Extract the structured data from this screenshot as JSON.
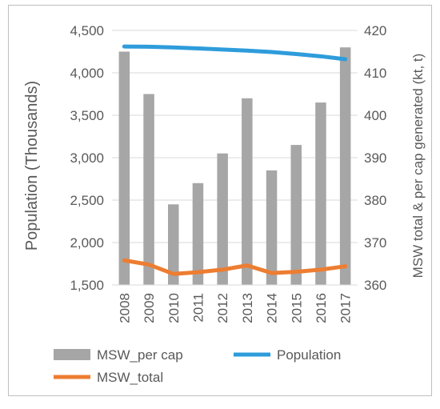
{
  "chart_data": {
    "type": "bar",
    "categories": [
      "2008",
      "2009",
      "2010",
      "2011",
      "2012",
      "2013",
      "2014",
      "2015",
      "2016",
      "2017"
    ],
    "ylabel_left": "Population (Thousands)",
    "ylabel_right": "MSW total & per cap generated (kt, t)",
    "ylim_left": [
      1500,
      4500
    ],
    "ylim_right": [
      360,
      420
    ],
    "yticks_left": [
      "1,500",
      "2,000",
      "2,500",
      "3,000",
      "3,500",
      "4,000",
      "4,500"
    ],
    "yticks_left_values": [
      1500,
      2000,
      2500,
      3000,
      3500,
      4000,
      4500
    ],
    "yticks_right": [
      "360",
      "370",
      "380",
      "390",
      "400",
      "410",
      "420"
    ],
    "yticks_right_values": [
      360,
      370,
      380,
      390,
      400,
      410,
      420
    ],
    "grid": true,
    "legend_position": "bottom",
    "series": [
      {
        "name": "MSW_per cap",
        "kind": "bar",
        "axis": "right",
        "color": "#a6a6a6",
        "values": [
          415,
          405,
          379,
          384,
          391,
          404,
          387,
          393,
          403,
          416
        ]
      },
      {
        "name": "Population",
        "kind": "line",
        "axis": "left",
        "color": "#2e9cdb",
        "values": [
          4310,
          4308,
          4300,
          4288,
          4275,
          4262,
          4245,
          4222,
          4195,
          4160
        ]
      },
      {
        "name": "MSW_total",
        "kind": "line",
        "axis": "right",
        "color": "#ed7d31",
        "values": [
          365.8,
          364.8,
          362.6,
          363.0,
          363.6,
          364.6,
          362.8,
          363.1,
          363.6,
          364.4
        ]
      }
    ]
  }
}
